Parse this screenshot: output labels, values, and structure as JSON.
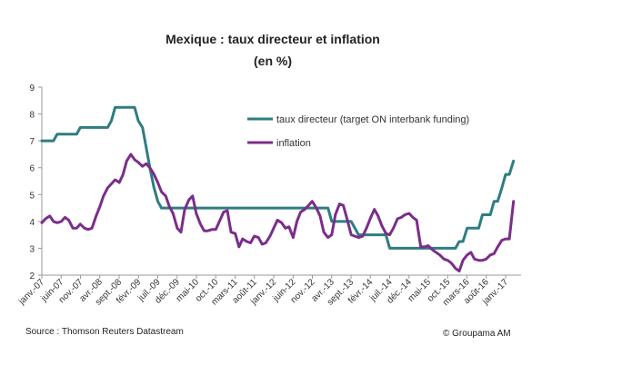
{
  "chart_data": {
    "type": "line",
    "title": "Mexique : taux directeur et inflation",
    "subtitle": "(en %)",
    "ylim": [
      2,
      9
    ],
    "yticks": [
      "2",
      "3",
      "4",
      "5",
      "6",
      "7",
      "8",
      "9"
    ],
    "xlim": [
      2007.0,
      2017.333
    ],
    "xtick_labels": [
      "janv.-07",
      "juin-07",
      "nov.-07",
      "avr.-08",
      "sept.-08",
      "févr.-09",
      "juil.-09",
      "déc.-09",
      "mai-10",
      "oct.-10",
      "mars-11",
      "août-11",
      "janv.-12",
      "juin-12",
      "nov.-12",
      "avr.-13",
      "sept.-13",
      "févr.-14",
      "juil.-14",
      "déc.-14",
      "mai-15",
      "oct.-15",
      "mars-16",
      "août-16",
      "janv.-17"
    ],
    "xtick_values": [
      2007.0,
      2007.417,
      2007.833,
      2008.25,
      2008.667,
      2009.083,
      2009.5,
      2009.917,
      2010.333,
      2010.75,
      2011.167,
      2011.583,
      2012.0,
      2012.417,
      2012.833,
      2013.25,
      2013.667,
      2014.083,
      2014.5,
      2014.917,
      2015.333,
      2015.75,
      2016.167,
      2016.583,
      2017.0
    ],
    "grid": false,
    "legend_position": "top-right",
    "series": [
      {
        "name": "taux directeur (target ON interbank funding)",
        "color": "#2e7d80",
        "points": [
          [
            2007.0,
            7.0
          ],
          [
            2007.25,
            7.0
          ],
          [
            2007.33,
            7.25
          ],
          [
            2007.75,
            7.25
          ],
          [
            2007.83,
            7.5
          ],
          [
            2008.42,
            7.5
          ],
          [
            2008.5,
            7.75
          ],
          [
            2008.58,
            8.25
          ],
          [
            2009.0,
            8.25
          ],
          [
            2009.08,
            7.75
          ],
          [
            2009.17,
            7.5
          ],
          [
            2009.25,
            6.75
          ],
          [
            2009.33,
            6.0
          ],
          [
            2009.42,
            5.25
          ],
          [
            2009.5,
            4.75
          ],
          [
            2009.58,
            4.5
          ],
          [
            2013.17,
            4.5
          ],
          [
            2013.25,
            4.0
          ],
          [
            2013.67,
            4.0
          ],
          [
            2013.75,
            3.75
          ],
          [
            2013.83,
            3.5
          ],
          [
            2014.42,
            3.5
          ],
          [
            2014.5,
            3.0
          ],
          [
            2015.92,
            3.0
          ],
          [
            2016.0,
            3.25
          ],
          [
            2016.08,
            3.25
          ],
          [
            2016.17,
            3.75
          ],
          [
            2016.42,
            3.75
          ],
          [
            2016.5,
            4.25
          ],
          [
            2016.67,
            4.25
          ],
          [
            2016.75,
            4.75
          ],
          [
            2016.83,
            4.75
          ],
          [
            2016.92,
            5.25
          ],
          [
            2017.0,
            5.75
          ],
          [
            2017.08,
            5.75
          ],
          [
            2017.17,
            6.25
          ]
        ]
      },
      {
        "name": "inflation",
        "color": "#7b2d8a",
        "points": [
          [
            2007.0,
            3.95
          ],
          [
            2007.08,
            4.1
          ],
          [
            2007.17,
            4.2
          ],
          [
            2007.25,
            4.0
          ],
          [
            2007.33,
            3.95
          ],
          [
            2007.42,
            4.0
          ],
          [
            2007.5,
            4.15
          ],
          [
            2007.58,
            4.05
          ],
          [
            2007.67,
            3.75
          ],
          [
            2007.75,
            3.75
          ],
          [
            2007.83,
            3.9
          ],
          [
            2007.92,
            3.75
          ],
          [
            2008.0,
            3.7
          ],
          [
            2008.08,
            3.75
          ],
          [
            2008.17,
            4.2
          ],
          [
            2008.25,
            4.55
          ],
          [
            2008.33,
            4.95
          ],
          [
            2008.42,
            5.25
          ],
          [
            2008.5,
            5.4
          ],
          [
            2008.58,
            5.55
          ],
          [
            2008.67,
            5.45
          ],
          [
            2008.75,
            5.75
          ],
          [
            2008.83,
            6.25
          ],
          [
            2008.92,
            6.5
          ],
          [
            2009.0,
            6.3
          ],
          [
            2009.08,
            6.2
          ],
          [
            2009.17,
            6.05
          ],
          [
            2009.25,
            6.15
          ],
          [
            2009.33,
            6.0
          ],
          [
            2009.42,
            5.75
          ],
          [
            2009.5,
            5.45
          ],
          [
            2009.58,
            5.1
          ],
          [
            2009.67,
            4.95
          ],
          [
            2009.75,
            4.55
          ],
          [
            2009.83,
            4.3
          ],
          [
            2009.92,
            3.75
          ],
          [
            2010.0,
            3.6
          ],
          [
            2010.08,
            4.45
          ],
          [
            2010.17,
            4.8
          ],
          [
            2010.25,
            4.95
          ],
          [
            2010.33,
            4.3
          ],
          [
            2010.42,
            3.9
          ],
          [
            2010.5,
            3.65
          ],
          [
            2010.58,
            3.65
          ],
          [
            2010.67,
            3.7
          ],
          [
            2010.75,
            3.7
          ],
          [
            2010.83,
            4.0
          ],
          [
            2010.92,
            4.35
          ],
          [
            2011.0,
            4.4
          ],
          [
            2011.08,
            3.6
          ],
          [
            2011.17,
            3.55
          ],
          [
            2011.25,
            3.05
          ],
          [
            2011.33,
            3.35
          ],
          [
            2011.42,
            3.25
          ],
          [
            2011.5,
            3.2
          ],
          [
            2011.58,
            3.45
          ],
          [
            2011.67,
            3.4
          ],
          [
            2011.75,
            3.15
          ],
          [
            2011.83,
            3.2
          ],
          [
            2011.92,
            3.45
          ],
          [
            2012.0,
            3.75
          ],
          [
            2012.08,
            4.05
          ],
          [
            2012.17,
            3.95
          ],
          [
            2012.25,
            3.75
          ],
          [
            2012.33,
            3.8
          ],
          [
            2012.42,
            3.4
          ],
          [
            2012.5,
            4.0
          ],
          [
            2012.58,
            4.35
          ],
          [
            2012.67,
            4.45
          ],
          [
            2012.75,
            4.6
          ],
          [
            2012.83,
            4.75
          ],
          [
            2012.92,
            4.5
          ],
          [
            2013.0,
            4.2
          ],
          [
            2013.08,
            3.6
          ],
          [
            2013.17,
            3.4
          ],
          [
            2013.25,
            3.5
          ],
          [
            2013.33,
            4.25
          ],
          [
            2013.42,
            4.65
          ],
          [
            2013.5,
            4.6
          ],
          [
            2013.58,
            4.1
          ],
          [
            2013.67,
            3.5
          ],
          [
            2013.75,
            3.45
          ],
          [
            2013.83,
            3.4
          ],
          [
            2013.92,
            3.45
          ],
          [
            2014.0,
            3.75
          ],
          [
            2014.08,
            4.1
          ],
          [
            2014.17,
            4.45
          ],
          [
            2014.25,
            4.2
          ],
          [
            2014.33,
            3.85
          ],
          [
            2014.42,
            3.55
          ],
          [
            2014.5,
            3.5
          ],
          [
            2014.58,
            3.75
          ],
          [
            2014.67,
            4.1
          ],
          [
            2014.75,
            4.15
          ],
          [
            2014.83,
            4.25
          ],
          [
            2014.92,
            4.3
          ],
          [
            2015.0,
            4.15
          ],
          [
            2015.08,
            4.05
          ],
          [
            2015.17,
            3.05
          ],
          [
            2015.25,
            3.05
          ],
          [
            2015.33,
            3.1
          ],
          [
            2015.42,
            2.95
          ],
          [
            2015.5,
            2.85
          ],
          [
            2015.58,
            2.75
          ],
          [
            2015.67,
            2.6
          ],
          [
            2015.75,
            2.55
          ],
          [
            2015.83,
            2.45
          ],
          [
            2015.92,
            2.25
          ],
          [
            2016.0,
            2.15
          ],
          [
            2016.08,
            2.55
          ],
          [
            2016.17,
            2.75
          ],
          [
            2016.25,
            2.85
          ],
          [
            2016.33,
            2.6
          ],
          [
            2016.42,
            2.55
          ],
          [
            2016.5,
            2.55
          ],
          [
            2016.58,
            2.6
          ],
          [
            2016.67,
            2.75
          ],
          [
            2016.75,
            2.8
          ],
          [
            2016.83,
            3.05
          ],
          [
            2016.92,
            3.3
          ],
          [
            2017.0,
            3.35
          ],
          [
            2017.08,
            3.35
          ],
          [
            2017.17,
            4.75
          ]
        ]
      }
    ],
    "source": "Source : Thomson Reuters Datastream",
    "credit": "© Groupama AM"
  }
}
